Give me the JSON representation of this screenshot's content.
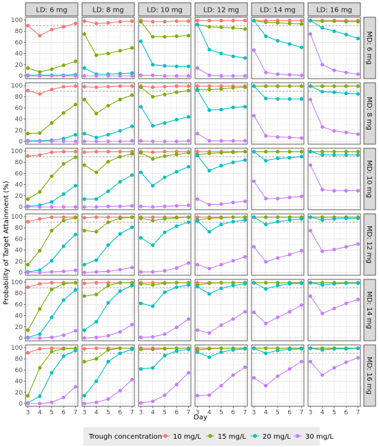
{
  "chart_data": {
    "type": "line",
    "xlabel": "Day",
    "ylabel": "Probability of Target Attainment (%)",
    "x": [
      3,
      4,
      5,
      6,
      7
    ],
    "ylim": [
      0,
      100
    ],
    "yticks": [
      0,
      20,
      40,
      60,
      80,
      100
    ],
    "reference_line": 90,
    "grid": true,
    "col_labels": [
      "LD: 6 mg",
      "LD: 8 mg",
      "LD: 10 mg",
      "LD: 12 mg",
      "LD: 14 mg",
      "LD: 16 mg"
    ],
    "row_labels": [
      "MD: 6 mg",
      "MD: 8 mg",
      "MD: 10 mg",
      "MD: 12 mg",
      "MD: 14 mg",
      "MD: 16 mg"
    ],
    "legend": {
      "title": "Trough concentration",
      "position": "bottom",
      "items": [
        {
          "label": "10 mg/L",
          "color": "#F8766D"
        },
        {
          "label": "15 mg/L",
          "color": "#7CAE00"
        },
        {
          "label": "20 mg/L",
          "color": "#00BFC4"
        },
        {
          "label": "30 mg/L",
          "color": "#C77CFF"
        }
      ]
    },
    "panels": [
      [
        [
          [
            90,
            72,
            83,
            88,
            94
          ],
          [
            14,
            7,
            12,
            19,
            26
          ],
          [
            1,
            1,
            1,
            1,
            2
          ],
          [
            0,
            0,
            0,
            0,
            0
          ]
        ],
        [
          [
            98,
            94,
            95,
            97,
            98
          ],
          [
            75,
            37,
            40,
            45,
            50
          ],
          [
            14,
            3,
            3,
            4,
            5
          ],
          [
            0,
            0,
            0,
            0,
            0
          ]
        ],
        [
          [
            99,
            97,
            97,
            98,
            98
          ],
          [
            97,
            70,
            70,
            71,
            72
          ],
          [
            62,
            20,
            18,
            17,
            17
          ],
          [
            1,
            1,
            0,
            0,
            0
          ]
        ],
        [
          [
            99,
            99,
            99,
            99,
            99
          ],
          [
            92,
            88,
            87,
            86,
            84
          ],
          [
            92,
            47,
            40,
            35,
            32
          ],
          [
            14,
            1,
            0,
            0,
            0
          ]
        ],
        [
          [
            99,
            99,
            99,
            99,
            99
          ],
          [
            99,
            96,
            95,
            94,
            93
          ],
          [
            99,
            71,
            63,
            57,
            51
          ],
          [
            46,
            6,
            3,
            2,
            1
          ]
        ],
        [
          [
            99,
            99,
            99,
            99,
            99
          ],
          [
            99,
            98,
            98,
            97,
            97
          ],
          [
            99,
            86,
            80,
            74,
            67
          ],
          [
            75,
            20,
            10,
            6,
            3
          ]
        ]
      ],
      [
        [
          [
            91,
            85,
            93,
            98,
            99
          ],
          [
            14,
            15,
            33,
            51,
            66
          ],
          [
            1,
            1,
            2,
            5,
            12
          ],
          [
            0,
            0,
            0,
            0,
            0
          ]
        ],
        [
          [
            98,
            97,
            98,
            99,
            99
          ],
          [
            75,
            50,
            64,
            75,
            83
          ],
          [
            14,
            7,
            12,
            19,
            27
          ],
          [
            0,
            0,
            0,
            0,
            1
          ]
        ],
        [
          [
            99,
            97,
            98,
            99,
            99
          ],
          [
            97,
            80,
            84,
            88,
            91
          ],
          [
            62,
            28,
            33,
            39,
            44
          ],
          [
            1,
            0,
            0,
            0,
            1
          ]
        ],
        [
          [
            99,
            99,
            99,
            99,
            99
          ],
          [
            93,
            93,
            94,
            96,
            97
          ],
          [
            92,
            56,
            57,
            61,
            62
          ],
          [
            14,
            1,
            1,
            1,
            1
          ]
        ],
        [
          [
            99,
            99,
            99,
            99,
            99
          ],
          [
            99,
            99,
            99,
            99,
            99
          ],
          [
            99,
            77,
            76,
            76,
            76
          ],
          [
            46,
            10,
            8,
            7,
            6
          ]
        ],
        [
          [
            99,
            99,
            99,
            99,
            99
          ],
          [
            99,
            99,
            99,
            99,
            99
          ],
          [
            99,
            89,
            88,
            86,
            85
          ],
          [
            75,
            26,
            19,
            16,
            13
          ]
        ]
      ],
      [
        [
          [
            91,
            93,
            98,
            99,
            99
          ],
          [
            14,
            27,
            55,
            77,
            89
          ],
          [
            1,
            3,
            9,
            23,
            38
          ],
          [
            0,
            0,
            0,
            0,
            0
          ]
        ],
        [
          [
            98,
            99,
            99,
            99,
            99
          ],
          [
            75,
            62,
            81,
            90,
            95
          ],
          [
            14,
            14,
            28,
            45,
            57
          ],
          [
            0,
            0,
            1,
            1,
            2
          ]
        ],
        [
          [
            99,
            98,
            99,
            99,
            99
          ],
          [
            97,
            86,
            91,
            94,
            97
          ],
          [
            62,
            38,
            53,
            63,
            72
          ],
          [
            1,
            0,
            1,
            2,
            3
          ]
        ],
        [
          [
            99,
            99,
            99,
            99,
            99
          ],
          [
            94,
            96,
            97,
            98,
            99
          ],
          [
            92,
            65,
            74,
            80,
            84
          ],
          [
            14,
            4,
            5,
            8,
            10
          ]
        ],
        [
          [
            99,
            99,
            99,
            99,
            99
          ],
          [
            99,
            99,
            99,
            99,
            99
          ],
          [
            99,
            83,
            87,
            88,
            90
          ],
          [
            46,
            15,
            15,
            17,
            19
          ]
        ],
        [
          [
            99,
            99,
            99,
            99,
            99
          ],
          [
            99,
            99,
            99,
            99,
            99
          ],
          [
            99,
            93,
            93,
            93,
            93
          ],
          [
            75,
            31,
            29,
            29,
            29
          ]
        ]
      ],
      [
        [
          [
            91,
            96,
            99,
            99,
            99
          ],
          [
            14,
            39,
            75,
            93,
            98
          ],
          [
            1,
            4,
            21,
            47,
            68
          ],
          [
            0,
            0,
            1,
            2,
            4
          ]
        ],
        [
          [
            98,
            99,
            99,
            99,
            99
          ],
          [
            75,
            73,
            90,
            97,
            99
          ],
          [
            14,
            22,
            49,
            69,
            81
          ],
          [
            0,
            1,
            2,
            5,
            9
          ]
        ],
        [
          [
            99,
            99,
            99,
            99,
            99
          ],
          [
            97,
            93,
            96,
            98,
            99
          ],
          [
            62,
            49,
            72,
            83,
            90
          ],
          [
            1,
            1,
            3,
            8,
            17
          ]
        ],
        [
          [
            99,
            99,
            99,
            99,
            99
          ],
          [
            94,
            97,
            98,
            99,
            99
          ],
          [
            92,
            73,
            86,
            91,
            94
          ],
          [
            14,
            7,
            14,
            21,
            28
          ]
        ],
        [
          [
            99,
            99,
            99,
            99,
            99
          ],
          [
            99,
            99,
            99,
            99,
            99
          ],
          [
            99,
            86,
            91,
            94,
            96
          ],
          [
            46,
            19,
            26,
            32,
            39
          ]
        ],
        [
          [
            99,
            99,
            99,
            99,
            99
          ],
          [
            99,
            99,
            99,
            99,
            99
          ],
          [
            99,
            94,
            96,
            97,
            97
          ],
          [
            75,
            38,
            41,
            46,
            51
          ]
        ]
      ],
      [
        [
          [
            91,
            97,
            99,
            99,
            99
          ],
          [
            14,
            52,
            87,
            97,
            99
          ],
          [
            1,
            7,
            37,
            68,
            86
          ],
          [
            0,
            0,
            1,
            5,
            13
          ]
        ],
        [
          [
            98,
            99,
            99,
            99,
            99
          ],
          [
            75,
            78,
            94,
            99,
            99
          ],
          [
            14,
            29,
            63,
            84,
            94
          ],
          [
            0,
            1,
            4,
            11,
            24
          ]
        ],
        [
          [
            99,
            99,
            99,
            99,
            99
          ],
          [
            97,
            95,
            98,
            99,
            99
          ],
          [
            62,
            57,
            82,
            91,
            95
          ],
          [
            1,
            2,
            7,
            19,
            34
          ]
        ],
        [
          [
            99,
            99,
            99,
            99,
            99
          ],
          [
            95,
            98,
            99,
            99,
            99
          ],
          [
            92,
            79,
            89,
            94,
            97
          ],
          [
            14,
            9,
            23,
            34,
            47
          ]
        ],
        [
          [
            99,
            99,
            99,
            99,
            99
          ],
          [
            99,
            99,
            99,
            99,
            99
          ],
          [
            99,
            88,
            94,
            97,
            98
          ],
          [
            46,
            26,
            37,
            47,
            59
          ]
        ],
        [
          [
            99,
            99,
            99,
            99,
            99
          ],
          [
            99,
            99,
            99,
            99,
            99
          ],
          [
            99,
            95,
            97,
            98,
            98
          ],
          [
            75,
            44,
            53,
            62,
            69
          ]
        ]
      ],
      [
        [
          [
            91,
            98,
            99,
            99,
            99
          ],
          [
            14,
            64,
            93,
            98,
            99
          ],
          [
            1,
            13,
            55,
            85,
            95
          ],
          [
            0,
            0,
            2,
            11,
            30
          ]
        ],
        [
          [
            98,
            99,
            99,
            99,
            99
          ],
          [
            75,
            80,
            96,
            99,
            99
          ],
          [
            14,
            40,
            75,
            90,
            97
          ],
          [
            0,
            2,
            8,
            23,
            43
          ]
        ],
        [
          [
            99,
            99,
            99,
            99,
            99
          ],
          [
            97,
            97,
            98,
            99,
            99
          ],
          [
            62,
            64,
            86,
            94,
            97
          ],
          [
            1,
            4,
            15,
            34,
            55
          ]
        ],
        [
          [
            99,
            99,
            99,
            99,
            99
          ],
          [
            96,
            98,
            99,
            99,
            99
          ],
          [
            92,
            83,
            92,
            96,
            98
          ],
          [
            14,
            15,
            32,
            51,
            65
          ]
        ],
        [
          [
            99,
            99,
            99,
            99,
            99
          ],
          [
            99,
            99,
            99,
            99,
            99
          ],
          [
            99,
            90,
            95,
            97,
            98
          ],
          [
            46,
            32,
            49,
            62,
            75
          ]
        ],
        [
          [
            99,
            99,
            99,
            99,
            99
          ],
          [
            99,
            99,
            99,
            99,
            99
          ],
          [
            99,
            96,
            98,
            98,
            99
          ],
          [
            75,
            51,
            64,
            74,
            82
          ]
        ]
      ]
    ]
  }
}
